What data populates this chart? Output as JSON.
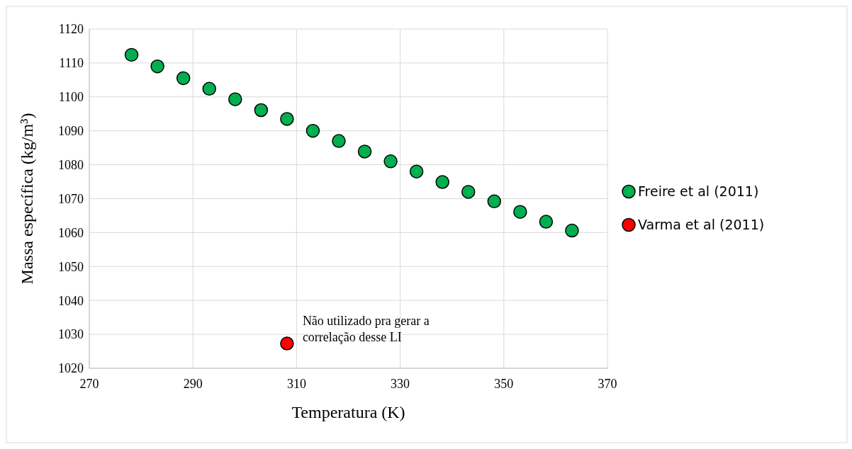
{
  "chart_data": {
    "type": "scatter",
    "xlabel": "Temperatura (K)",
    "ylabel": "Massa específica (kg/m³)",
    "xlim": [
      270,
      370
    ],
    "xticks": [
      270,
      290,
      310,
      330,
      350,
      370
    ],
    "ylim": [
      1020,
      1120
    ],
    "yticks": [
      1020,
      1030,
      1040,
      1050,
      1060,
      1070,
      1080,
      1090,
      1100,
      1110,
      1120
    ],
    "grid": true,
    "legend": "right",
    "marker": "circle",
    "series": [
      {
        "name": "Freire et al (2011)",
        "color": "#00b050",
        "x": [
          278.15,
          283.15,
          288.15,
          293.15,
          298.15,
          303.15,
          308.15,
          313.15,
          318.15,
          323.15,
          328.15,
          333.15,
          338.15,
          343.15,
          348.15,
          353.15,
          358.15,
          363.15
        ],
        "values": [
          1112.4,
          1109.0,
          1105.5,
          1102.4,
          1099.3,
          1096.1,
          1093.5,
          1090.0,
          1087.0,
          1083.9,
          1081.0,
          1078.0,
          1074.9,
          1072.0,
          1069.2,
          1066.1,
          1063.2,
          1060.6
        ]
      },
      {
        "name": "Varma et al (2011)",
        "color": "#ff0000",
        "x": [
          308.15
        ],
        "values": [
          1027.3
        ]
      }
    ],
    "annotations": [
      "Não utilizado pra gerar a correlação desse LI"
    ]
  }
}
